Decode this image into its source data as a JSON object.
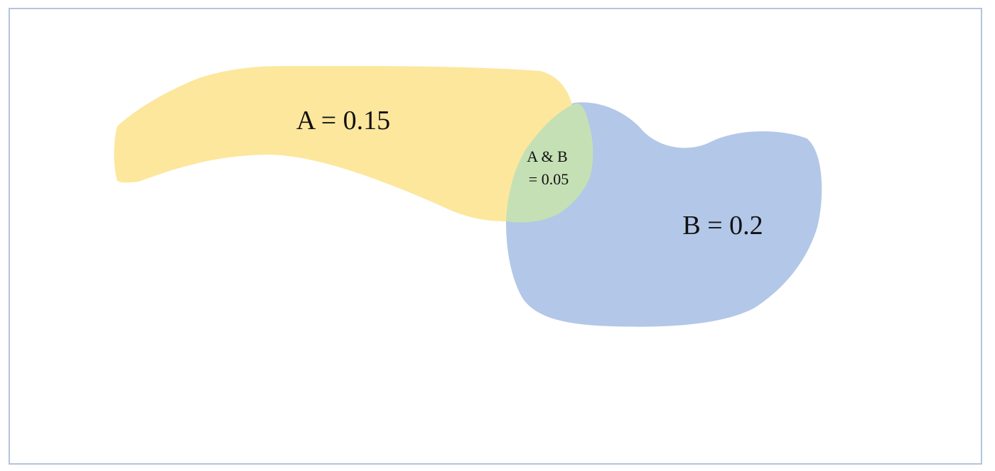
{
  "diagram": {
    "regions": {
      "a": {
        "label": "A = 0.15",
        "color": "#fde79d"
      },
      "b": {
        "label": "B = 0.2",
        "color": "#b3c7e8"
      },
      "overlap": {
        "label_line1": "A & B",
        "label_line2": "= 0.05",
        "color": "#c5e0b5"
      }
    },
    "frame_color": "#b4c4de"
  }
}
